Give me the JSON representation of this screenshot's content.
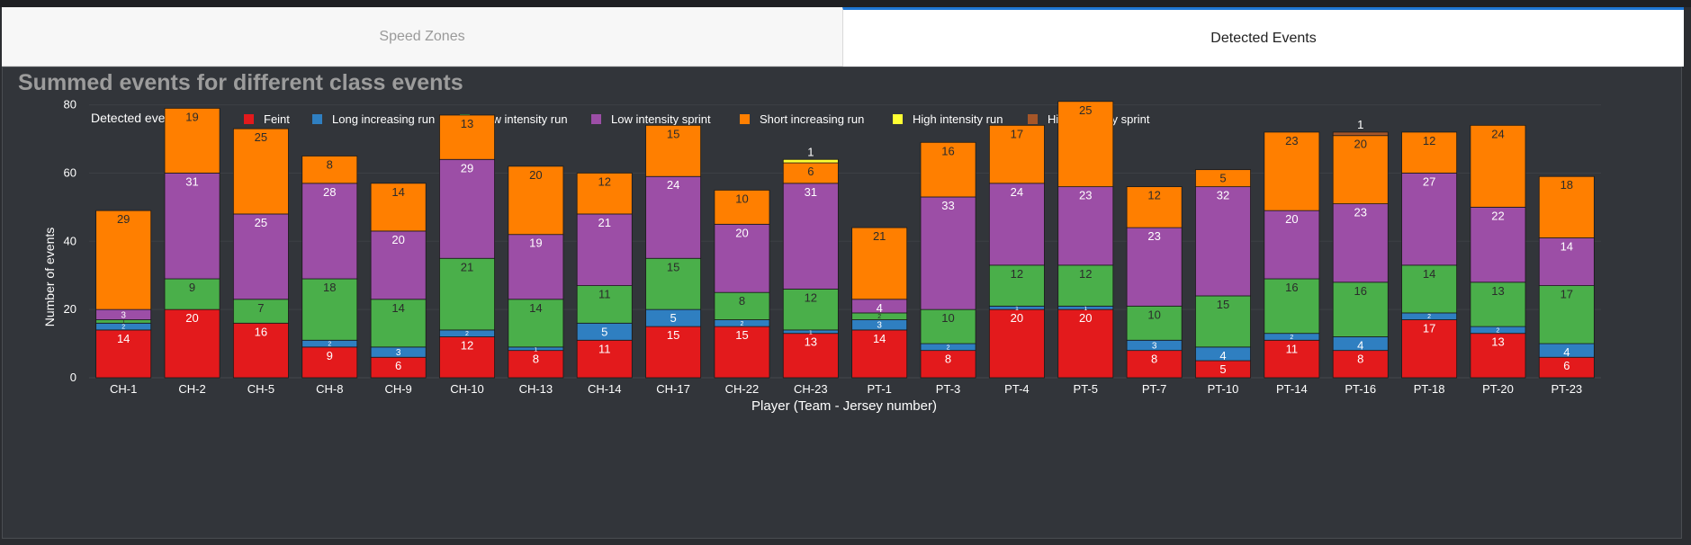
{
  "tabs": [
    {
      "label": "Speed Zones",
      "active": false
    },
    {
      "label": "Detected Events",
      "active": true
    }
  ],
  "colors": {
    "background": "#32353a",
    "text": "#ffffff",
    "title": "#9c9c9c",
    "grid": "#3d4045",
    "tab_active_border": "#1f77d4"
  },
  "chart_data": {
    "type": "bar",
    "stacked": true,
    "title": "Summed events for different class events",
    "xlabel": "Player (Team - Jersey number)",
    "ylabel": "Number of events",
    "ylim": [
      0,
      82
    ],
    "yticks": [
      0,
      20,
      40,
      60,
      80
    ],
    "grid": true,
    "legend_title": "Detected event class",
    "legend_position": "top",
    "categories": [
      "CH-1",
      "CH-2",
      "CH-5",
      "CH-8",
      "CH-9",
      "CH-10",
      "CH-13",
      "CH-14",
      "CH-17",
      "CH-22",
      "CH-23",
      "PT-1",
      "PT-3",
      "PT-4",
      "PT-5",
      "PT-7",
      "PT-10",
      "PT-14",
      "PT-16",
      "PT-18",
      "PT-20",
      "PT-23"
    ],
    "series": [
      {
        "name": "Feint",
        "color": "#e31a1c",
        "values": [
          14,
          20,
          16,
          9,
          6,
          12,
          8,
          11,
          15,
          15,
          13,
          14,
          8,
          20,
          20,
          8,
          5,
          11,
          8,
          17,
          13,
          6
        ]
      },
      {
        "name": "Long increasing run",
        "color": "#2f7fc1",
        "values": [
          2,
          0,
          0,
          2,
          3,
          2,
          1,
          5,
          5,
          2,
          1,
          3,
          2,
          1,
          1,
          3,
          4,
          2,
          4,
          2,
          2,
          4
        ]
      },
      {
        "name": "Low intensity run",
        "color": "#4aaf4a",
        "values": [
          1,
          9,
          7,
          18,
          14,
          21,
          14,
          11,
          15,
          8,
          12,
          2,
          10,
          12,
          12,
          10,
          15,
          16,
          16,
          14,
          13,
          17
        ]
      },
      {
        "name": "Low intensity sprint",
        "color": "#9c4ea6",
        "values": [
          3,
          31,
          25,
          28,
          20,
          29,
          19,
          21,
          24,
          20,
          31,
          4,
          33,
          24,
          23,
          23,
          32,
          20,
          23,
          27,
          22,
          14
        ]
      },
      {
        "name": "Short increasing run",
        "color": "#ff7f00",
        "values": [
          29,
          19,
          25,
          8,
          14,
          13,
          20,
          12,
          15,
          10,
          6,
          21,
          16,
          17,
          25,
          12,
          5,
          23,
          20,
          12,
          24,
          18
        ]
      },
      {
        "name": "High intensity run",
        "color": "#ffff33",
        "values": [
          0,
          0,
          0,
          0,
          0,
          0,
          0,
          0,
          0,
          0,
          1,
          0,
          0,
          0,
          0,
          0,
          0,
          0,
          0,
          0,
          0,
          0
        ]
      },
      {
        "name": "High intensity sprint",
        "color": "#a65628",
        "values": [
          0,
          0,
          0,
          0,
          0,
          0,
          0,
          0,
          0,
          0,
          0,
          0,
          0,
          0,
          0,
          0,
          0,
          0,
          1,
          0,
          0,
          0
        ]
      }
    ]
  }
}
